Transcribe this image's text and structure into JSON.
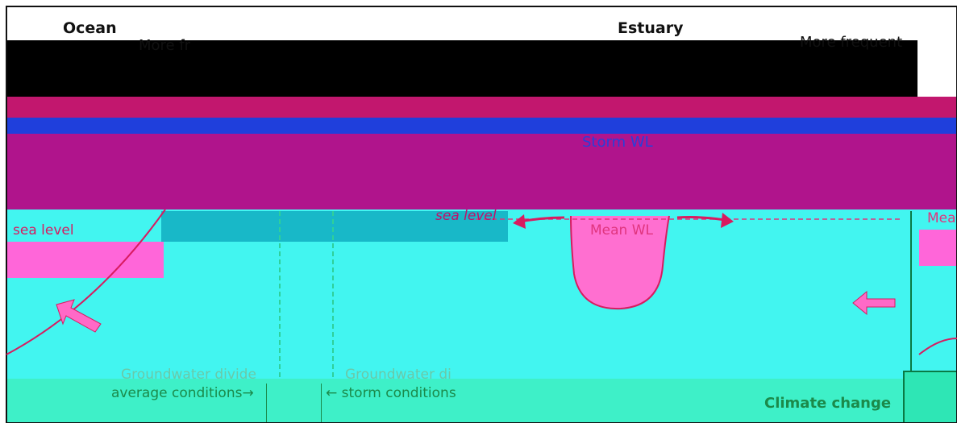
{
  "labels": {
    "ocean": "Ocean",
    "estuary": "Estuary",
    "more_frequent_left": "More fr",
    "more_frequent_right": "More frequent",
    "storm_wl": "Storm WL",
    "sea_level_mid": "sea level",
    "sea_level_left": "sea level",
    "mean_wl": "Mean WL",
    "mean_wl_cut": "Mea",
    "groundwater_divide_left": "Groundwater divide",
    "groundwater_divide_right": "Groundwater di",
    "average_conditions": "average conditions→",
    "storm_conditions": "← storm conditions",
    "climate_change": "Climate change"
  },
  "colors": {
    "sea_level_line": "#d81b60",
    "groundwater_text": "#6ac9a7",
    "annotation_green": "#1b8a4a",
    "storm_blue": "#2a3fd8",
    "arrow_fill": "#ff69c7"
  }
}
